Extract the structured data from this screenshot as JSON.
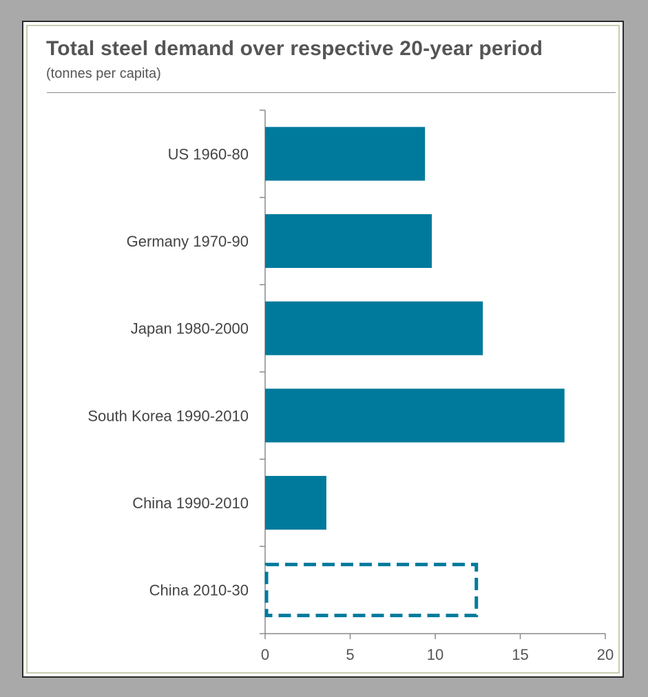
{
  "chart_data": {
    "type": "bar",
    "orientation": "horizontal",
    "title": "Total steel demand over respective 20-year period",
    "subtitle": "(tonnes per capita)",
    "categories": [
      "US 1960-80",
      "Germany 1970-90",
      "Japan 1980-2000",
      "South Korea 1990-2010",
      "China 1990-2010",
      "China 2010-30"
    ],
    "values": [
      9.4,
      9.8,
      12.8,
      17.6,
      3.6,
      12.5
    ],
    "styles": [
      "solid",
      "solid",
      "solid",
      "solid",
      "solid",
      "dashed-outline"
    ],
    "xlim": [
      0,
      20
    ],
    "xticks": [
      "0",
      "5",
      "10",
      "15",
      "20"
    ],
    "grid": false,
    "colors": {
      "bar": "#007a9c",
      "axis": "#8a8a8a"
    }
  }
}
